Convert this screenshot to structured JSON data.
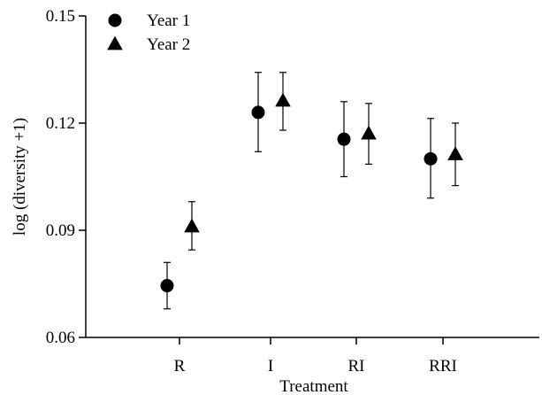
{
  "chart_data": {
    "type": "scatter",
    "xlabel": "Treatment",
    "ylabel": "log (diversity +1)",
    "categories": [
      "R",
      "I",
      "RI",
      "RRI"
    ],
    "ylim": [
      0.06,
      0.15
    ],
    "yticks": [
      "0.06",
      "0.09",
      "0.12",
      "0.15"
    ],
    "grid": false,
    "legend_position": "top-left",
    "series": [
      {
        "name": "Year 1",
        "marker": "circle",
        "values": [
          0.0745,
          0.123,
          0.1155,
          0.11
        ],
        "err_low": [
          0.068,
          0.112,
          0.105,
          0.099
        ],
        "err_high": [
          0.081,
          0.1342,
          0.126,
          0.1213
        ]
      },
      {
        "name": "Year 2",
        "marker": "triangle",
        "values": [
          0.091,
          0.1262,
          0.117,
          0.1112
        ],
        "err_low": [
          0.0845,
          0.118,
          0.1085,
          0.1025
        ],
        "err_high": [
          0.098,
          0.1342,
          0.1255,
          0.12
        ]
      }
    ]
  }
}
